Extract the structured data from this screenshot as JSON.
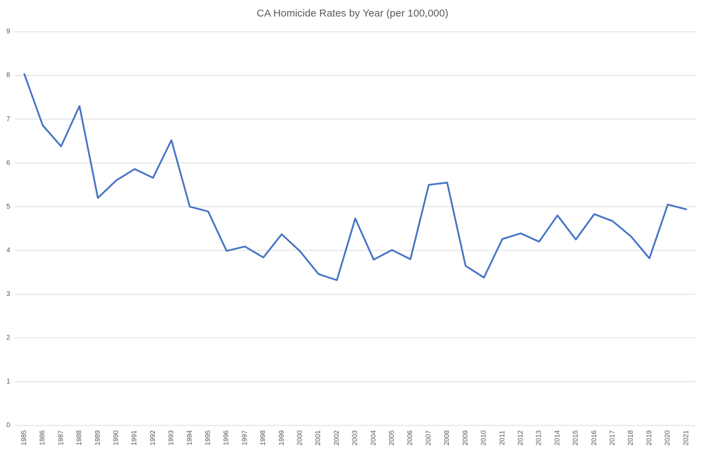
{
  "chart_data": {
    "type": "line",
    "title": "CA Homicide Rates by Year (per 100,000)",
    "categories": [
      "1985",
      "1986",
      "1987",
      "1988",
      "1989",
      "1990",
      "1991",
      "1992",
      "1993",
      "1994",
      "1995",
      "1996",
      "1997",
      "1998",
      "1999",
      "2000",
      "2001",
      "2002",
      "2003",
      "2004",
      "2005",
      "2006",
      "2007",
      "2008",
      "2009",
      "2010",
      "2011",
      "2012",
      "2013",
      "2014",
      "2015",
      "2016",
      "2017",
      "2018",
      "2019",
      "2020",
      "2021"
    ],
    "series": [
      {
        "name": "Homicide rate",
        "color": "#4472c4",
        "values": [
          8.03,
          6.86,
          6.38,
          7.3,
          5.2,
          5.6,
          5.86,
          5.66,
          6.52,
          5.0,
          4.89,
          3.99,
          4.09,
          3.84,
          4.37,
          3.98,
          3.46,
          3.32,
          4.73,
          3.79,
          4.01,
          3.8,
          5.5,
          5.55,
          3.65,
          3.38,
          4.26,
          4.39,
          4.2,
          4.8,
          4.25,
          4.83,
          4.67,
          4.32,
          3.82,
          5.05,
          4.94
        ]
      }
    ],
    "ylim": [
      0,
      9
    ],
    "yticks": [
      0,
      1,
      2,
      3,
      4,
      5,
      6,
      7,
      8,
      9
    ],
    "grid": true
  }
}
